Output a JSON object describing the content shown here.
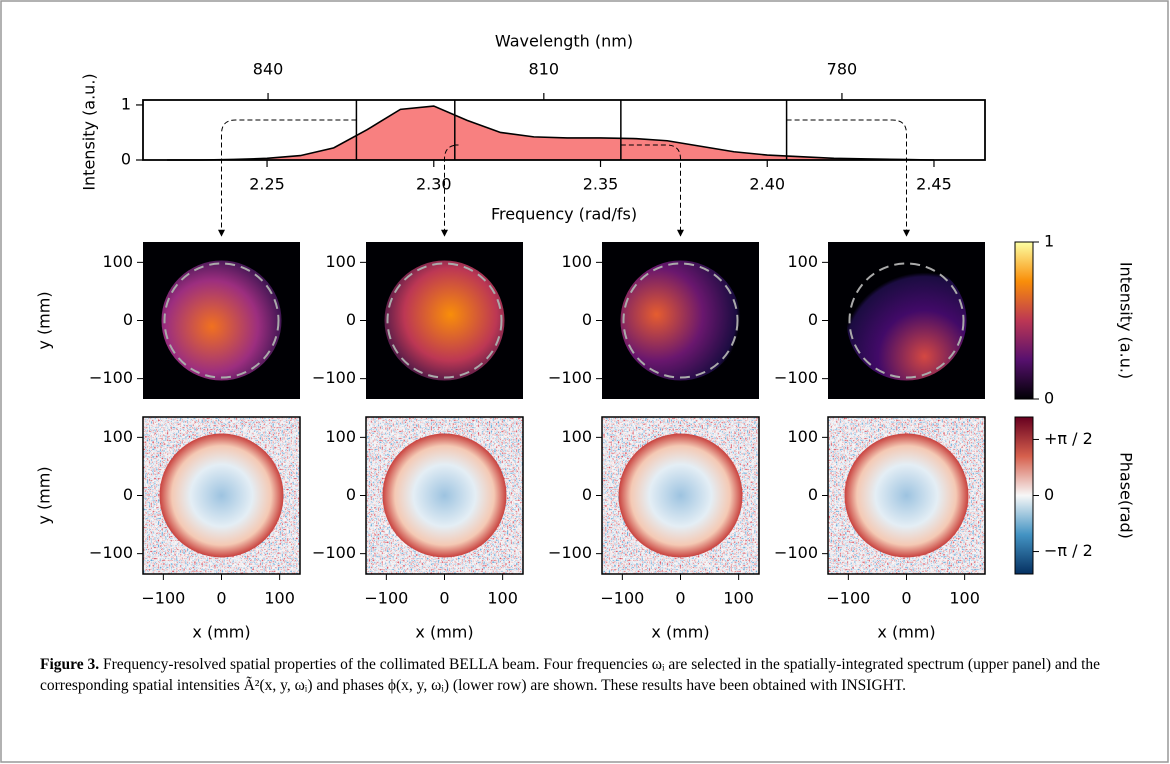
{
  "chart_data": [
    {
      "type": "area",
      "x_label": "Frequency (rad/fs)",
      "y_label": "Intensity (a.u.)",
      "x2_label": "Wavelength (nm)",
      "x": [
        2.22,
        2.23,
        2.24,
        2.25,
        2.26,
        2.27,
        2.28,
        2.29,
        2.3,
        2.31,
        2.32,
        2.33,
        2.34,
        2.35,
        2.36,
        2.37,
        2.38,
        2.39,
        2.4,
        2.41,
        2.42,
        2.43,
        2.44,
        2.45
      ],
      "values": [
        0.0,
        0.0,
        0.01,
        0.03,
        0.08,
        0.22,
        0.55,
        0.92,
        0.98,
        0.72,
        0.5,
        0.42,
        0.4,
        0.4,
        0.39,
        0.35,
        0.25,
        0.15,
        0.09,
        0.06,
        0.03,
        0.02,
        0.01,
        0.0
      ],
      "color": "#f88080",
      "xlim": [
        2.2128,
        2.4653
      ],
      "ylim": [
        0,
        1.09
      ],
      "xticks": [
        2.25,
        2.3,
        2.35,
        2.4,
        2.45
      ],
      "xtick_labels": [
        "2.25",
        "2.30",
        "2.35",
        "2.40",
        "2.45"
      ],
      "yticks": [
        0,
        1
      ],
      "x2ticks": [
        {
          "value": 2.2503,
          "label": "840"
        },
        {
          "value": 2.333,
          "label": "810"
        },
        {
          "value": 2.4224,
          "label": "780"
        }
      ],
      "selected_frequencies": [
        2.2768,
        2.3063,
        2.3561,
        2.4058
      ]
    },
    {
      "type": "image-grid",
      "x_label": "x (mm)",
      "y_label": "y (mm)",
      "xlim": [
        -135,
        135
      ],
      "ylim": [
        -135,
        135
      ],
      "xticks": [
        {
          "value": -100,
          "label": "−100"
        },
        0,
        100
      ],
      "yticks": [
        {
          "value": -100,
          "label": "−100"
        },
        0,
        100
      ],
      "colorbars": [
        {
          "label": "Intensity (a.u.)",
          "lim": [
            0,
            1
          ],
          "ticks": [
            0,
            1
          ]
        },
        {
          "label": "Phase(rad)",
          "lim": [
            -2.2,
            2.2
          ],
          "ticks": [
            {
              "value": 1.5708,
              "label": "+π / 2"
            },
            0,
            {
              "value": -1.5708,
              "label": "−π / 2"
            }
          ]
        }
      ]
    }
  ],
  "caption": {
    "label": "Figure 3.",
    "text": "Frequency-resolved spatial properties of the collimated BELLA beam. Four frequencies ωᵢ are selected in the spatially-integrated spectrum (upper panel) and the corresponding spatial intensities Ã²(x, y, ωᵢ) and phases ϕ(x, y, ωᵢ) (lower row) are shown. These results have been obtained with INSIGHT."
  }
}
